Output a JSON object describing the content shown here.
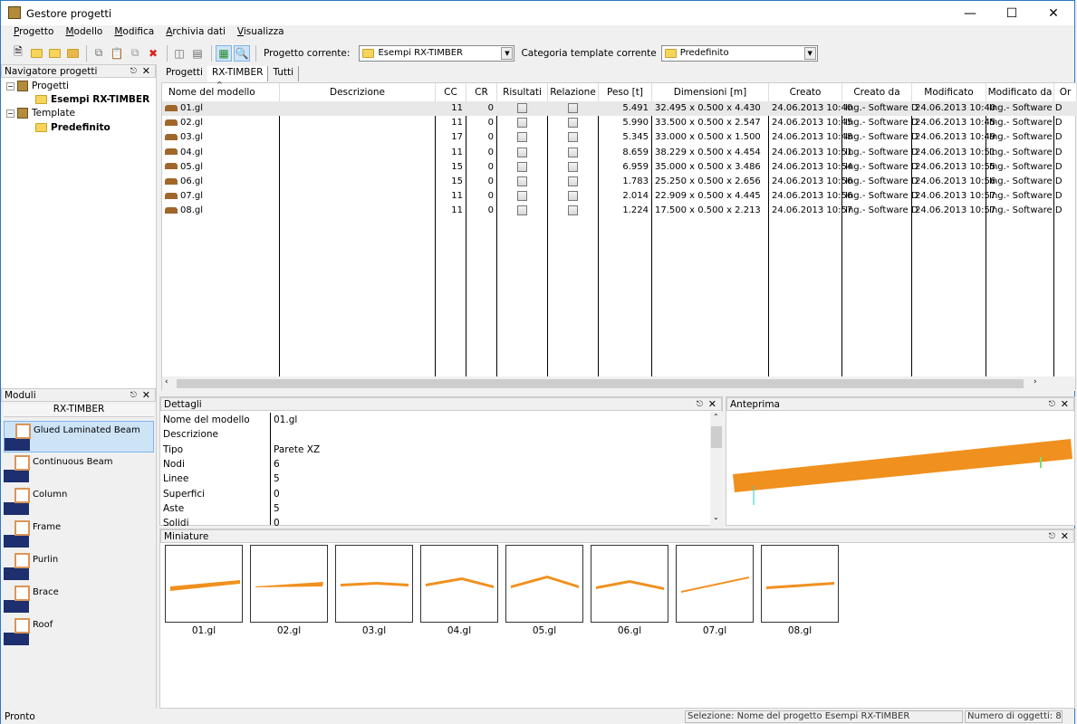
{
  "window": {
    "title": "Gestore progetti",
    "icon": "app-drawer-icon",
    "controls": [
      "minimize",
      "maximize",
      "close"
    ]
  },
  "menu": [
    "Progetto",
    "Modello",
    "Modifica",
    "Archivia dati",
    "Visualizza"
  ],
  "toolbar": {
    "icons": [
      "new-icon",
      "open-folder-icon",
      "folder-check-icon",
      "folder-x-icon",
      "copy-icon",
      "paste-icon",
      "duplicate-icon",
      "delete-icon",
      "import-icon",
      "export-icon",
      "grid-view-icon",
      "preview-icon"
    ],
    "current_project_label": "Progetto corrente:",
    "current_project": "Esempi RX-TIMBER",
    "template_label": "Categoria template corrente",
    "template": "Predefinito"
  },
  "navigator": {
    "title": "Navigatore progetti",
    "tree": [
      {
        "label": "Progetti",
        "children": [
          "Esempi RX-TIMBER"
        ]
      },
      {
        "label": "Template",
        "children": [
          "Predefinito"
        ]
      }
    ]
  },
  "modules": {
    "title": "Moduli",
    "group": "RX-TIMBER",
    "items": [
      "Glued Laminated Beam",
      "Continuous Beam",
      "Column",
      "Frame",
      "Purlin",
      "Brace",
      "Roof"
    ],
    "selected": 0
  },
  "tabs": [
    "Progetti",
    "RX-TIMBER",
    "Tutti"
  ],
  "active_tab": 1,
  "table": {
    "columns": [
      "Nome del modello",
      "Descrizione",
      "CC",
      "CR",
      "Risultati",
      "Relazione",
      "Peso [t]",
      "Dimensioni [m]",
      "Creato",
      "Creato da",
      "Modificato",
      "Modificato da",
      "Or"
    ],
    "rows": [
      [
        "01.gl",
        "",
        "11",
        "0",
        false,
        false,
        "5.491",
        "32.495 x 0.500 x 4.430",
        "24.06.2013 10:40",
        "Ing.- Software D",
        "24.06.2013 10:40",
        "Ing.- Software D",
        ""
      ],
      [
        "02.gl",
        "",
        "11",
        "0",
        false,
        false,
        "5.990",
        "33.500 x 0.500 x 2.547",
        "24.06.2013 10:45",
        "Ing.- Software D",
        "24.06.2013 10:45",
        "Ing.- Software D",
        ""
      ],
      [
        "03.gl",
        "",
        "17",
        "0",
        false,
        false,
        "5.345",
        "33.000 x 0.500 x 1.500",
        "24.06.2013 10:48",
        "Ing.- Software D",
        "24.06.2013 10:49",
        "Ing.- Software D",
        ""
      ],
      [
        "04.gl",
        "",
        "11",
        "0",
        false,
        false,
        "8.659",
        "38.229 x 0.500 x 4.454",
        "24.06.2013 10:51",
        "Ing.- Software D",
        "24.06.2013 10:51",
        "Ing.- Software D",
        ""
      ],
      [
        "05.gl",
        "",
        "15",
        "0",
        false,
        false,
        "6.959",
        "35.000 x 0.500 x 3.486",
        "24.06.2013 10:54",
        "Ing.- Software D",
        "24.06.2013 10:55",
        "Ing.- Software D",
        ""
      ],
      [
        "06.gl",
        "",
        "15",
        "0",
        false,
        false,
        "1.783",
        "25.250 x 0.500 x 2.656",
        "24.06.2013 10:56",
        "Ing.- Software D",
        "24.06.2013 10:56",
        "Ing.- Software D",
        ""
      ],
      [
        "07.gl",
        "",
        "11",
        "0",
        false,
        false,
        "2.014",
        "22.909 x 0.500 x 4.445",
        "24.06.2013 10:56",
        "Ing.- Software D",
        "24.06.2013 10:57",
        "Ing.- Software D",
        ""
      ],
      [
        "08.gl",
        "",
        "11",
        "0",
        false,
        false,
        "1.224",
        "17.500 x 0.500 x 2.213",
        "24.06.2013 10:57",
        "Ing.- Software D",
        "24.06.2013 10:57",
        "Ing.- Software D",
        ""
      ]
    ],
    "selected_row": 0
  },
  "details": {
    "title": "Dettagli",
    "rows": [
      [
        "Nome del modello",
        "01.gl"
      ],
      [
        "Descrizione",
        ""
      ],
      [
        "Tipo",
        "Parete XZ"
      ],
      [
        "Nodi",
        "6"
      ],
      [
        "Linee",
        "5"
      ],
      [
        "Superfici",
        "0"
      ],
      [
        "Aste",
        "5"
      ],
      [
        "Solidi",
        "0"
      ]
    ]
  },
  "preview": {
    "title": "Anteprima",
    "beam_color": "#f0901e"
  },
  "miniature": {
    "title": "Miniature",
    "items": [
      "01.gl",
      "02.gl",
      "03.gl",
      "04.gl",
      "05.gl",
      "06.gl",
      "07.gl",
      "08.gl"
    ]
  },
  "status": {
    "left": "Pronto",
    "selection": "Selezione: Nome del progetto Esempi RX-TIMBER",
    "count": "Numero di oggetti: 8"
  }
}
